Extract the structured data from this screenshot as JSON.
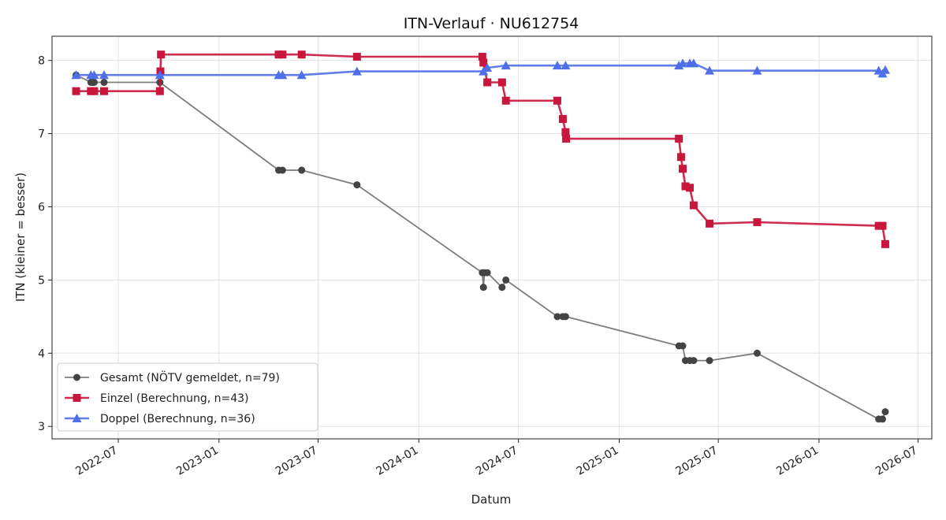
{
  "chart_data": {
    "type": "line",
    "title": "ITN-Verlauf · NU612754",
    "xlabel": "Datum",
    "ylabel": "ITN  (kleiner = besser)",
    "xlim": [
      "2022-03-02",
      "2026-07-26"
    ],
    "ylim": [
      2.83,
      8.33
    ],
    "x_ticks": [
      "2022-07",
      "2023-01",
      "2023-07",
      "2024-01",
      "2024-07",
      "2025-01",
      "2025-07",
      "2026-01",
      "2026-07"
    ],
    "y_ticks": [
      3,
      4,
      5,
      6,
      7,
      8
    ],
    "grid": true,
    "legend_position": "lower-left",
    "series": [
      {
        "name": "Gesamt (NÖTV gemeldet, n=79)",
        "color": "#666666",
        "marker": "circle",
        "points": [
          [
            "2022-04-15",
            7.8
          ],
          [
            "2022-05-12",
            7.7
          ],
          [
            "2022-05-15",
            7.7
          ],
          [
            "2022-05-18",
            7.7
          ],
          [
            "2022-06-05",
            7.7
          ],
          [
            "2022-09-15",
            7.7
          ],
          [
            "2023-04-20",
            6.5
          ],
          [
            "2023-04-27",
            6.5
          ],
          [
            "2023-06-01",
            6.5
          ],
          [
            "2023-09-10",
            6.3
          ],
          [
            "2024-04-26",
            5.1
          ],
          [
            "2024-04-28",
            4.9
          ],
          [
            "2024-04-30",
            5.1
          ],
          [
            "2024-05-05",
            5.1
          ],
          [
            "2024-06-01",
            4.9
          ],
          [
            "2024-06-08",
            5.0
          ],
          [
            "2024-09-10",
            4.5
          ],
          [
            "2024-09-20",
            4.5
          ],
          [
            "2024-09-25",
            4.5
          ],
          [
            "2025-04-20",
            4.1
          ],
          [
            "2025-04-27",
            4.1
          ],
          [
            "2025-05-02",
            3.9
          ],
          [
            "2025-05-10",
            3.9
          ],
          [
            "2025-05-17",
            3.9
          ],
          [
            "2025-06-15",
            3.9
          ],
          [
            "2025-09-10",
            4.0
          ],
          [
            "2026-04-20",
            3.1
          ],
          [
            "2026-04-27",
            3.1
          ],
          [
            "2026-05-02",
            3.2
          ]
        ]
      },
      {
        "name": "Einzel (Berechnung, n=43)",
        "color": "#c8163c",
        "marker": "square",
        "points": [
          [
            "2022-04-15",
            7.58
          ],
          [
            "2022-05-12",
            7.58
          ],
          [
            "2022-05-18",
            7.58
          ],
          [
            "2022-06-05",
            7.58
          ],
          [
            "2022-09-15",
            7.58
          ],
          [
            "2022-09-16",
            7.85
          ],
          [
            "2022-09-17",
            8.08
          ],
          [
            "2023-04-20",
            8.08
          ],
          [
            "2023-04-27",
            8.08
          ],
          [
            "2023-06-01",
            8.08
          ],
          [
            "2023-09-10",
            8.05
          ],
          [
            "2024-04-26",
            8.05
          ],
          [
            "2024-04-28",
            7.97
          ],
          [
            "2024-05-05",
            7.7
          ],
          [
            "2024-06-01",
            7.7
          ],
          [
            "2024-06-08",
            7.45
          ],
          [
            "2024-09-10",
            7.45
          ],
          [
            "2024-09-20",
            7.2
          ],
          [
            "2024-09-25",
            7.02
          ],
          [
            "2024-09-26",
            6.93
          ],
          [
            "2025-04-20",
            6.93
          ],
          [
            "2025-04-24",
            6.68
          ],
          [
            "2025-04-27",
            6.52
          ],
          [
            "2025-05-02",
            6.28
          ],
          [
            "2025-05-10",
            6.26
          ],
          [
            "2025-05-17",
            6.02
          ],
          [
            "2025-06-15",
            5.77
          ],
          [
            "2025-09-10",
            5.79
          ],
          [
            "2026-04-20",
            5.74
          ],
          [
            "2026-04-27",
            5.74
          ],
          [
            "2026-05-02",
            5.49
          ]
        ]
      },
      {
        "name": "Doppel (Berechnung, n=36)",
        "color": "#4f6fe8",
        "marker": "triangle",
        "points": [
          [
            "2022-04-15",
            7.8
          ],
          [
            "2022-05-12",
            7.8
          ],
          [
            "2022-05-18",
            7.8
          ],
          [
            "2022-06-05",
            7.8
          ],
          [
            "2022-09-15",
            7.8
          ],
          [
            "2023-04-20",
            7.8
          ],
          [
            "2023-04-27",
            7.8
          ],
          [
            "2023-06-01",
            7.8
          ],
          [
            "2023-09-10",
            7.85
          ],
          [
            "2024-04-28",
            7.85
          ],
          [
            "2024-05-05",
            7.9
          ],
          [
            "2024-06-08",
            7.93
          ],
          [
            "2024-09-10",
            7.93
          ],
          [
            "2024-09-25",
            7.93
          ],
          [
            "2025-04-20",
            7.93
          ],
          [
            "2025-04-27",
            7.96
          ],
          [
            "2025-05-10",
            7.96
          ],
          [
            "2025-05-17",
            7.96
          ],
          [
            "2025-06-15",
            7.86
          ],
          [
            "2025-09-10",
            7.86
          ],
          [
            "2026-04-20",
            7.86
          ],
          [
            "2026-04-27",
            7.82
          ],
          [
            "2026-05-02",
            7.87
          ]
        ]
      }
    ]
  }
}
